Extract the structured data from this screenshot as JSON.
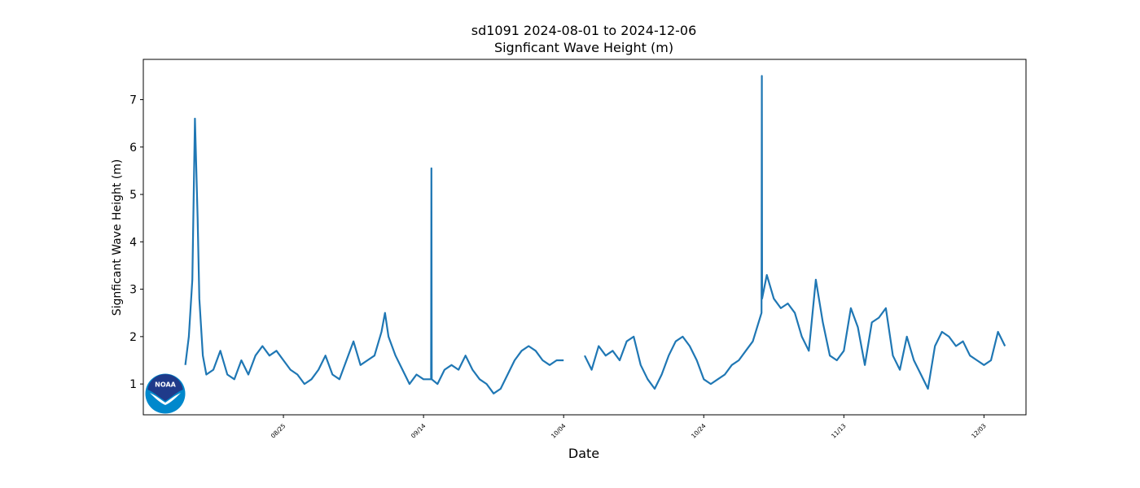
{
  "chart_data": {
    "type": "line",
    "title": "sd1091 2024-08-01 to 2024-12-06",
    "subtitle": "Signficant Wave Height (m)",
    "xlabel": "Date",
    "ylabel": "Signficant Wave Height (m)",
    "xlim": [
      "2024-08-05",
      "2024-12-09"
    ],
    "ylim": [
      0.35,
      7.85
    ],
    "x_ticks": [
      {
        "date": "2024-08-25",
        "label": "08/25"
      },
      {
        "date": "2024-09-14",
        "label": "09/14"
      },
      {
        "date": "2024-10-04",
        "label": "10/04"
      },
      {
        "date": "2024-10-24",
        "label": "10/24"
      },
      {
        "date": "2024-11-13",
        "label": "11/13"
      },
      {
        "date": "2024-12-03",
        "label": "12/03"
      }
    ],
    "y_ticks": [
      1,
      2,
      3,
      4,
      5,
      6,
      7
    ],
    "grid": false,
    "series": [
      {
        "color": "#1f77b4",
        "segments": [
          [
            [
              "2024-08-11",
              1.4
            ],
            [
              "2024-08-11 12:00",
              2.0
            ],
            [
              "2024-08-12",
              3.2
            ],
            [
              "2024-08-12 09:00",
              6.6
            ],
            [
              "2024-08-12 18:00",
              4.5
            ],
            [
              "2024-08-13",
              2.8
            ],
            [
              "2024-08-13 12:00",
              1.6
            ],
            [
              "2024-08-14",
              1.2
            ],
            [
              "2024-08-15",
              1.3
            ],
            [
              "2024-08-16",
              1.7
            ],
            [
              "2024-08-17",
              1.2
            ],
            [
              "2024-08-18",
              1.1
            ],
            [
              "2024-08-19",
              1.5
            ],
            [
              "2024-08-20",
              1.2
            ],
            [
              "2024-08-21",
              1.6
            ],
            [
              "2024-08-22",
              1.8
            ],
            [
              "2024-08-23",
              1.6
            ],
            [
              "2024-08-24",
              1.7
            ],
            [
              "2024-08-25",
              1.5
            ],
            [
              "2024-08-26",
              1.3
            ],
            [
              "2024-08-27",
              1.2
            ],
            [
              "2024-08-28",
              1.0
            ],
            [
              "2024-08-29",
              1.1
            ],
            [
              "2024-08-30",
              1.3
            ],
            [
              "2024-08-31",
              1.6
            ],
            [
              "2024-09-01",
              1.2
            ],
            [
              "2024-09-02",
              1.1
            ],
            [
              "2024-09-03",
              1.5
            ],
            [
              "2024-09-04",
              1.9
            ],
            [
              "2024-09-05",
              1.4
            ],
            [
              "2024-09-06",
              1.5
            ],
            [
              "2024-09-07",
              1.6
            ],
            [
              "2024-09-08",
              2.1
            ],
            [
              "2024-09-08 12:00",
              2.5
            ],
            [
              "2024-09-09",
              2.0
            ],
            [
              "2024-09-10",
              1.6
            ],
            [
              "2024-09-11",
              1.3
            ],
            [
              "2024-09-12",
              1.0
            ],
            [
              "2024-09-13",
              1.2
            ],
            [
              "2024-09-14",
              1.1
            ],
            [
              "2024-09-15 02:00",
              1.1
            ],
            [
              "2024-09-15 03:00",
              5.55
            ],
            [
              "2024-09-15 04:00",
              1.1
            ],
            [
              "2024-09-16",
              1.0
            ],
            [
              "2024-09-17",
              1.3
            ],
            [
              "2024-09-18",
              1.4
            ],
            [
              "2024-09-19",
              1.3
            ],
            [
              "2024-09-20",
              1.6
            ],
            [
              "2024-09-21",
              1.3
            ],
            [
              "2024-09-22",
              1.1
            ],
            [
              "2024-09-23",
              1.0
            ],
            [
              "2024-09-24",
              0.8
            ],
            [
              "2024-09-25",
              0.9
            ],
            [
              "2024-09-26",
              1.2
            ],
            [
              "2024-09-27",
              1.5
            ],
            [
              "2024-09-28",
              1.7
            ],
            [
              "2024-09-29",
              1.8
            ],
            [
              "2024-09-30",
              1.7
            ],
            [
              "2024-10-01",
              1.5
            ],
            [
              "2024-10-02",
              1.4
            ],
            [
              "2024-10-03",
              1.5
            ],
            [
              "2024-10-04",
              1.5
            ]
          ],
          [
            [
              "2024-10-07",
              1.6
            ],
            [
              "2024-10-08",
              1.3
            ],
            [
              "2024-10-09",
              1.8
            ],
            [
              "2024-10-10",
              1.6
            ],
            [
              "2024-10-11",
              1.7
            ],
            [
              "2024-10-12",
              1.5
            ],
            [
              "2024-10-13",
              1.9
            ],
            [
              "2024-10-14",
              2.0
            ],
            [
              "2024-10-15",
              1.4
            ],
            [
              "2024-10-16",
              1.1
            ],
            [
              "2024-10-17",
              0.9
            ],
            [
              "2024-10-18",
              1.2
            ],
            [
              "2024-10-19",
              1.6
            ],
            [
              "2024-10-20",
              1.9
            ],
            [
              "2024-10-21",
              2.0
            ],
            [
              "2024-10-22",
              1.8
            ],
            [
              "2024-10-23",
              1.5
            ],
            [
              "2024-10-24",
              1.1
            ],
            [
              "2024-10-25",
              1.0
            ],
            [
              "2024-10-26",
              1.1
            ],
            [
              "2024-10-27",
              1.2
            ],
            [
              "2024-10-28",
              1.4
            ],
            [
              "2024-10-29",
              1.5
            ],
            [
              "2024-10-30",
              1.7
            ],
            [
              "2024-10-31",
              1.9
            ],
            [
              "2024-11-01 06:00",
              2.5
            ],
            [
              "2024-11-01 07:00",
              7.5
            ],
            [
              "2024-11-01 08:00",
              2.8
            ],
            [
              "2024-11-02",
              3.3
            ],
            [
              "2024-11-03",
              2.8
            ],
            [
              "2024-11-04",
              2.6
            ],
            [
              "2024-11-05",
              2.7
            ],
            [
              "2024-11-06",
              2.5
            ],
            [
              "2024-11-07",
              2.0
            ],
            [
              "2024-11-08",
              1.7
            ],
            [
              "2024-11-09",
              3.2
            ],
            [
              "2024-11-10",
              2.3
            ],
            [
              "2024-11-11",
              1.6
            ],
            [
              "2024-11-12",
              1.5
            ],
            [
              "2024-11-13",
              1.7
            ],
            [
              "2024-11-14",
              2.6
            ],
            [
              "2024-11-15",
              2.2
            ],
            [
              "2024-11-16",
              1.4
            ],
            [
              "2024-11-17",
              2.3
            ],
            [
              "2024-11-18",
              2.4
            ],
            [
              "2024-11-19",
              2.6
            ],
            [
              "2024-11-20",
              1.6
            ],
            [
              "2024-11-21",
              1.3
            ],
            [
              "2024-11-22",
              2.0
            ],
            [
              "2024-11-23",
              1.5
            ],
            [
              "2024-11-24",
              1.2
            ],
            [
              "2024-11-25",
              0.9
            ],
            [
              "2024-11-26",
              1.8
            ],
            [
              "2024-11-27",
              2.1
            ],
            [
              "2024-11-28",
              2.0
            ],
            [
              "2024-11-29",
              1.8
            ],
            [
              "2024-11-30",
              1.9
            ],
            [
              "2024-12-01",
              1.6
            ],
            [
              "2024-12-02",
              1.5
            ],
            [
              "2024-12-03",
              1.4
            ],
            [
              "2024-12-04",
              1.5
            ],
            [
              "2024-12-05",
              2.1
            ],
            [
              "2024-12-06",
              1.8
            ]
          ]
        ]
      }
    ]
  },
  "logo": {
    "text": "NOAA"
  }
}
